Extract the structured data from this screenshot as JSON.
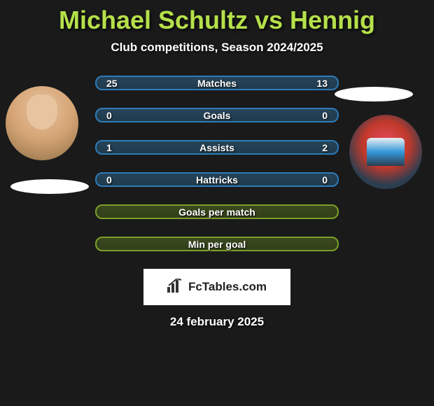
{
  "title_color": "#b5e04a",
  "title": "Michael Schultz vs Hennig",
  "subtitle": "Club competitions, Season 2024/2025",
  "row_colors": {
    "blue": {
      "border": "#2e7bb8",
      "bg": "#26455a"
    },
    "green": {
      "border": "#7aa028",
      "bg": "#3b4a1f"
    }
  },
  "rows": [
    {
      "left": "25",
      "label": "Matches",
      "right": "13",
      "color": "blue"
    },
    {
      "left": "0",
      "label": "Goals",
      "right": "0",
      "color": "blue"
    },
    {
      "left": "1",
      "label": "Assists",
      "right": "2",
      "color": "blue"
    },
    {
      "left": "0",
      "label": "Hattricks",
      "right": "0",
      "color": "blue"
    },
    {
      "left": "",
      "label": "Goals per match",
      "right": "",
      "color": "green"
    },
    {
      "left": "",
      "label": "Min per goal",
      "right": "",
      "color": "green"
    }
  ],
  "logo_text": "FcTables.com",
  "date_text": "24 february 2025"
}
